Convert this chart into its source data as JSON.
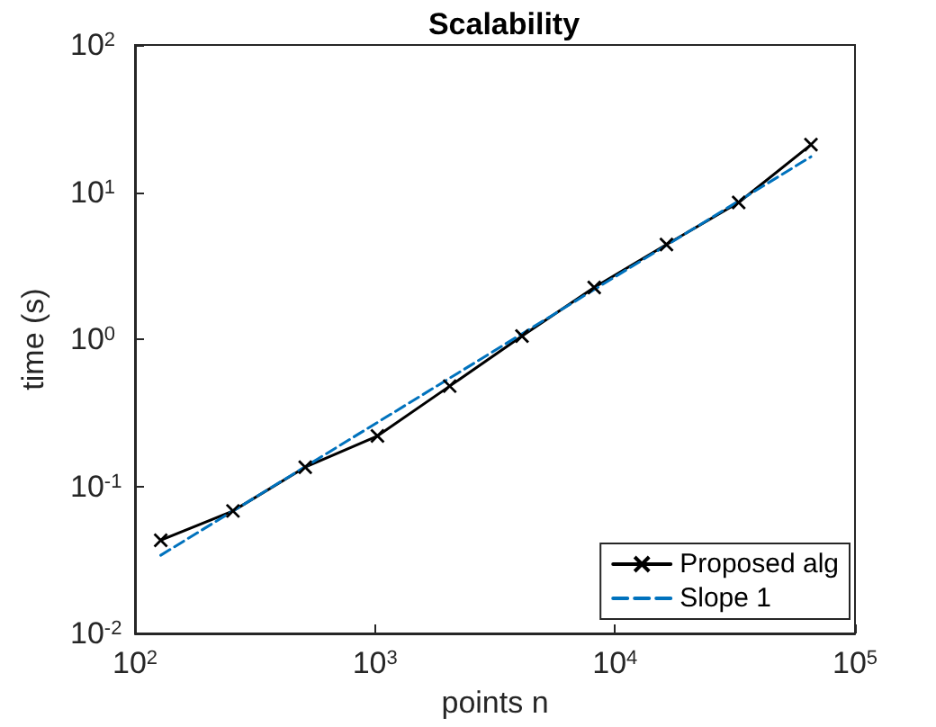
{
  "chart_data": {
    "type": "line",
    "title": "Scalability",
    "xlabel": "points n",
    "ylabel": "time (s)",
    "log": "xy",
    "grid": false,
    "legend": "bottom right",
    "x": [
      128,
      256,
      512,
      1024,
      2048,
      4096,
      8192,
      16384,
      32768,
      65536
    ],
    "series": [
      {
        "name": "Proposed alg",
        "color": "#000000",
        "marker": "cross",
        "line_style": "solid",
        "values": [
          0.043,
          0.068,
          0.135,
          0.22,
          0.48,
          1.05,
          2.25,
          4.4,
          8.5,
          21
        ]
      },
      {
        "name": "Slope 1",
        "color": "#0072bd",
        "marker": "none",
        "line_style": "dashed",
        "x": [
          128,
          65536
        ],
        "values": [
          0.034,
          17.4
        ]
      }
    ],
    "xlim": [
      100,
      100000
    ],
    "xticks": [
      {
        "value": 100,
        "label": "10$^{2}$"
      },
      {
        "value": 1000,
        "label": "10$^{3}$"
      },
      {
        "value": 10000,
        "label": "10$^{4}$"
      },
      {
        "value": 100000,
        "label": "10$^{5}$"
      }
    ],
    "ylim": [
      0.01,
      100
    ],
    "yticks": [
      {
        "value": 0.01,
        "label": "10$^{-2}$"
      },
      {
        "value": 0.1,
        "label": "10$^{-1}$"
      },
      {
        "value": 1,
        "label": "10$^{0}$"
      },
      {
        "value": 10,
        "label": "10$^{1}$"
      },
      {
        "value": 100,
        "label": "10$^{2}$"
      }
    ]
  }
}
